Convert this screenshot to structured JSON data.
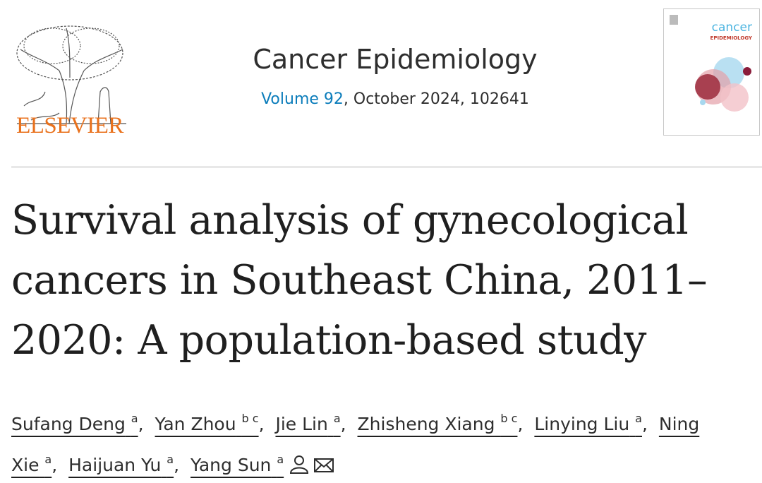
{
  "header": {
    "publisher": "ELSEVIER",
    "journal": "Cancer Epidemiology",
    "volume": "Volume 92",
    "issue_details": ", October 2024, 102641",
    "cover": {
      "title": "cancer",
      "subtitle": "EPIDEMIOLOGY"
    }
  },
  "article": {
    "title": "Survival analysis of gynecological cancers in Southeast China, 2011–2020: A population-based study",
    "authors": [
      {
        "name": "Sufang Deng",
        "affiliations": "a",
        "separator": ","
      },
      {
        "name": "Yan Zhou",
        "affiliations": "b c",
        "separator": ","
      },
      {
        "name": "Jie Lin",
        "affiliations": "a",
        "separator": ","
      },
      {
        "name": "Zhisheng Xiang",
        "affiliations": "b c",
        "separator": ","
      },
      {
        "name": "Linying Liu",
        "affiliations": "a",
        "separator": ","
      },
      {
        "name": "Ning Xie",
        "affiliations": "a",
        "separator": ","
      },
      {
        "name": "Haijuan Yu",
        "affiliations": "a",
        "separator": ","
      },
      {
        "name": "Yang Sun",
        "affiliations": "a"
      }
    ]
  }
}
